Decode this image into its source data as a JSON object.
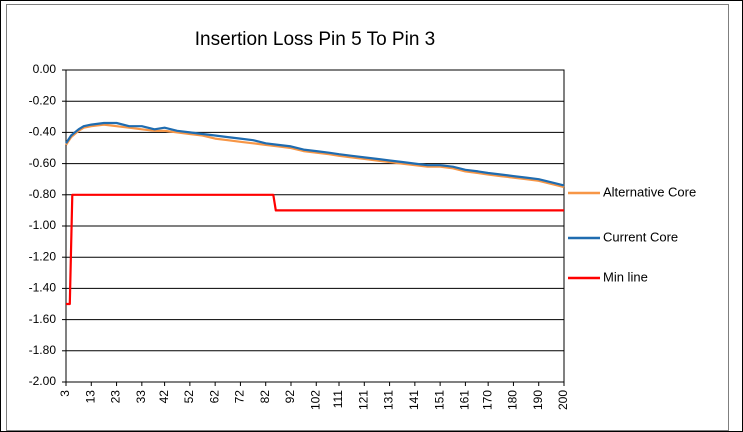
{
  "chart_data": {
    "type": "line",
    "title": "Insertion Loss  Pin 5 To Pin 3",
    "x": [
      3,
      5,
      8,
      10,
      13,
      18,
      23,
      28,
      33,
      38,
      42,
      47,
      52,
      57,
      62,
      67,
      72,
      77,
      82,
      87,
      92,
      97,
      102,
      107,
      111,
      116,
      121,
      126,
      131,
      136,
      141,
      146,
      151,
      156,
      161,
      166,
      170,
      175,
      180,
      185,
      190,
      195,
      200
    ],
    "series": [
      {
        "name": "Alternative Core",
        "color": "#f79646",
        "values": [
          -0.48,
          -0.43,
          -0.39,
          -0.37,
          -0.36,
          -0.35,
          -0.36,
          -0.37,
          -0.38,
          -0.39,
          -0.39,
          -0.4,
          -0.41,
          -0.42,
          -0.44,
          -0.45,
          -0.46,
          -0.47,
          -0.48,
          -0.49,
          -0.5,
          -0.52,
          -0.53,
          -0.54,
          -0.55,
          -0.56,
          -0.57,
          -0.58,
          -0.59,
          -0.6,
          -0.61,
          -0.62,
          -0.62,
          -0.63,
          -0.65,
          -0.66,
          -0.67,
          -0.68,
          -0.69,
          -0.7,
          -0.71,
          -0.73,
          -0.75
        ]
      },
      {
        "name": "Current Core",
        "color": "#1f6cb0",
        "values": [
          -0.47,
          -0.42,
          -0.38,
          -0.36,
          -0.35,
          -0.34,
          -0.34,
          -0.36,
          -0.36,
          -0.38,
          -0.37,
          -0.39,
          -0.4,
          -0.41,
          -0.42,
          -0.43,
          -0.44,
          -0.45,
          -0.47,
          -0.48,
          -0.49,
          -0.51,
          -0.52,
          -0.53,
          -0.54,
          -0.55,
          -0.56,
          -0.57,
          -0.58,
          -0.59,
          -0.6,
          -0.61,
          -0.61,
          -0.62,
          -0.64,
          -0.65,
          -0.66,
          -0.67,
          -0.68,
          -0.69,
          -0.7,
          -0.72,
          -0.74
        ]
      },
      {
        "name": "Min line",
        "color": "#ff0000",
        "x": [
          3,
          4.5,
          5.5,
          85,
          86,
          200
        ],
        "values": [
          -1.5,
          -1.5,
          -0.8,
          -0.8,
          -0.9,
          -0.9
        ]
      }
    ],
    "xlim": [
      3,
      200
    ],
    "xticks": [
      3,
      13,
      23,
      33,
      42,
      52,
      62,
      72,
      82,
      92,
      102,
      111,
      121,
      131,
      141,
      151,
      161,
      170,
      180,
      190,
      200
    ],
    "ylim": [
      -2,
      0
    ],
    "yticks": [
      {
        "value": 0,
        "label": "0.00"
      },
      {
        "value": -0.2,
        "label": "-0.20"
      },
      {
        "value": -0.4,
        "label": "-0.40"
      },
      {
        "value": -0.6,
        "label": "-0.60"
      },
      {
        "value": -0.8,
        "label": "-0.80"
      },
      {
        "value": -1,
        "label": "-1.00"
      },
      {
        "value": -1.2,
        "label": "-1.20"
      },
      {
        "value": -1.4,
        "label": "-1.40"
      },
      {
        "value": -1.6,
        "label": "-1.60"
      },
      {
        "value": -1.8,
        "label": "-1.80"
      },
      {
        "value": -2,
        "label": "-2.00"
      }
    ],
    "grid": true,
    "legend": "right"
  }
}
